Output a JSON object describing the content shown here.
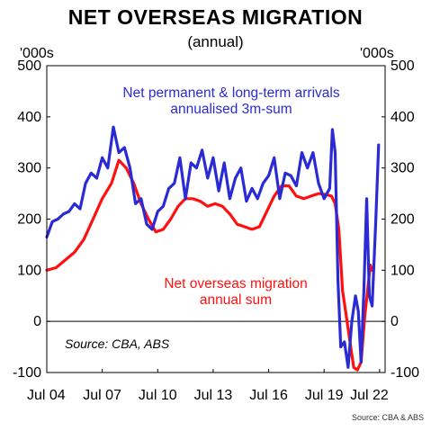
{
  "chart_data": {
    "type": "line",
    "title": "NET OVERSEAS MIGRATION",
    "subtitle": "(annual)",
    "yunit_left": "'000s",
    "yunit_right": "'000s",
    "ylim": [
      -100,
      500
    ],
    "yticks": [
      -100,
      0,
      100,
      200,
      300,
      400,
      500
    ],
    "xlim": [
      2004.5,
      2022.8
    ],
    "xticks": [
      {
        "label": "Jul 04",
        "x": 2004.5
      },
      {
        "label": "Jul 07",
        "x": 2007.5
      },
      {
        "label": "Jul 10",
        "x": 2010.5
      },
      {
        "label": "Jul 13",
        "x": 2013.5
      },
      {
        "label": "Jul 16",
        "x": 2016.5
      },
      {
        "label": "Jul 19",
        "x": 2019.5
      },
      {
        "label": "Jul 22",
        "x": 2022.5
      }
    ],
    "grid": false,
    "series": [
      {
        "name": "Net permanent & long-term arrivals annualised 3m-sum",
        "color": "#2b2bd6",
        "x": [
          2004.5,
          2004.8,
          2005.1,
          2005.4,
          2005.7,
          2006.0,
          2006.3,
          2006.6,
          2006.9,
          2007.2,
          2007.5,
          2007.8,
          2008.1,
          2008.4,
          2008.7,
          2009.0,
          2009.3,
          2009.6,
          2009.9,
          2010.2,
          2010.5,
          2010.8,
          2011.1,
          2011.4,
          2011.7,
          2012.0,
          2012.3,
          2012.6,
          2012.9,
          2013.2,
          2013.5,
          2013.8,
          2014.1,
          2014.4,
          2014.7,
          2015.0,
          2015.3,
          2015.6,
          2015.9,
          2016.2,
          2016.5,
          2016.8,
          2017.1,
          2017.4,
          2017.7,
          2018.0,
          2018.3,
          2018.6,
          2018.9,
          2019.2,
          2019.5,
          2019.8,
          2019.95,
          2020.1,
          2020.25,
          2020.4,
          2020.6,
          2020.8,
          2021.0,
          2021.2,
          2021.35,
          2021.5,
          2021.65,
          2021.8,
          2021.95,
          2022.1,
          2022.3,
          2022.45
        ],
        "values": [
          165,
          195,
          200,
          210,
          215,
          230,
          220,
          270,
          290,
          280,
          320,
          300,
          380,
          330,
          340,
          300,
          230,
          240,
          190,
          180,
          215,
          225,
          260,
          270,
          320,
          240,
          310,
          300,
          335,
          280,
          320,
          255,
          310,
          240,
          280,
          300,
          235,
          260,
          240,
          270,
          285,
          320,
          240,
          290,
          285,
          265,
          330,
          300,
          330,
          270,
          240,
          260,
          375,
          330,
          80,
          -50,
          -40,
          -90,
          0,
          50,
          20,
          -80,
          60,
          240,
          50,
          30,
          200,
          345
        ]
      },
      {
        "name": "Net overseas migration annual sum",
        "color": "#ff1010",
        "x": [
          2004.5,
          2005.0,
          2005.5,
          2006.0,
          2006.5,
          2007.0,
          2007.5,
          2008.0,
          2008.4,
          2008.8,
          2009.2,
          2009.6,
          2010.0,
          2010.4,
          2010.8,
          2011.2,
          2011.6,
          2012.0,
          2012.4,
          2012.8,
          2013.2,
          2013.6,
          2014.0,
          2014.4,
          2014.8,
          2015.2,
          2015.6,
          2016.0,
          2016.4,
          2016.8,
          2017.2,
          2017.6,
          2018.0,
          2018.4,
          2018.8,
          2019.2,
          2019.6,
          2019.9,
          2020.1,
          2020.3,
          2020.5,
          2020.7,
          2020.9,
          2021.1,
          2021.3,
          2021.5,
          2021.7,
          2021.85,
          2022.0,
          2022.1
        ],
        "values": [
          100,
          105,
          120,
          135,
          160,
          200,
          240,
          270,
          315,
          300,
          270,
          230,
          200,
          175,
          180,
          200,
          225,
          240,
          240,
          235,
          225,
          230,
          225,
          210,
          190,
          185,
          180,
          185,
          215,
          245,
          265,
          265,
          245,
          240,
          245,
          250,
          248,
          245,
          230,
          180,
          60,
          10,
          -40,
          -90,
          -95,
          -80,
          10,
          60,
          110,
          100
        ]
      }
    ],
    "annotations": {
      "blue_line1": "Net permanent & long-term arrivals",
      "blue_line2": "annualised 3m-sum",
      "red_line1": "Net overseas migration",
      "red_line2": "annual sum",
      "source": "Source: CBA, ABS"
    },
    "footnote": "Source: CBA & ABS"
  }
}
